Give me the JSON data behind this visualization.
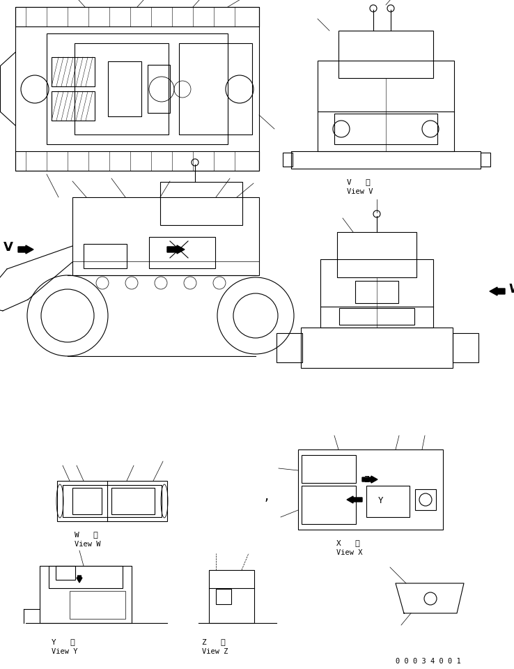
{
  "bg_color": "#ffffff",
  "line_color": "#000000",
  "fig_width": 7.38,
  "fig_height": 9.6,
  "dpi": 100,
  "part_number": "0 0 0 3 4 0 0 1",
  "label_v_top": "V   視",
  "label_v_bot": "View V",
  "label_w_top": "W   視",
  "label_w_bot": "View W",
  "label_x_top": "X   視",
  "label_x_bot": "View X",
  "label_y_top": "Y   視",
  "label_y_bot": "View Y",
  "label_z_top": "Z   視",
  "label_z_bot": "View Z"
}
